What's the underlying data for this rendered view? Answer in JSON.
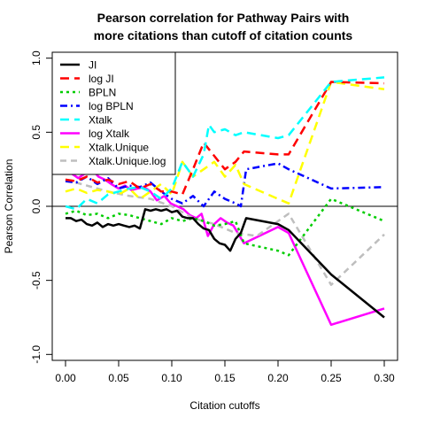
{
  "chart_data": {
    "type": "line",
    "title": "Pearson correlation for Pathway Pairs with\nmore citations than cutoff of citation counts",
    "xlabel": "Citation cutoffs",
    "ylabel": "Pearson Correlation",
    "xlim": [
      -0.0125,
      0.3125
    ],
    "ylim": [
      -1.04,
      1.04
    ],
    "xticks": [
      0.0,
      0.05,
      0.1,
      0.15,
      0.2,
      0.25,
      0.3
    ],
    "xtick_labels": [
      "0.00",
      "0.05",
      "0.10",
      "0.15",
      "0.20",
      "0.25",
      "0.30"
    ],
    "yticks": [
      -1.0,
      -0.5,
      0.0,
      0.5,
      1.0
    ],
    "ytick_labels": [
      "-1.0",
      "-0.5",
      "0.0",
      "0.5",
      "1.0"
    ],
    "hline": 0.0,
    "legend_position": "top-left",
    "series": [
      {
        "name": "log Xtalk",
        "color": "#ff00ff",
        "dash": "solid",
        "x": [
          0.0,
          0.006,
          0.012,
          0.018,
          0.025,
          0.031,
          0.037,
          0.043,
          0.05,
          0.056,
          0.062,
          0.068,
          0.074,
          0.08,
          0.086,
          0.093,
          0.099,
          0.105,
          0.111,
          0.117,
          0.123,
          0.128,
          0.134,
          0.14,
          0.146,
          0.152,
          0.158,
          0.168,
          0.2,
          0.21,
          0.25,
          0.3
        ],
        "y": [
          0.22,
          0.22,
          0.19,
          0.22,
          0.25,
          0.2,
          0.18,
          0.15,
          0.12,
          0.14,
          0.11,
          0.12,
          0.13,
          0.1,
          0.04,
          0.07,
          0.02,
          0.0,
          -0.02,
          -0.06,
          -0.08,
          -0.05,
          -0.2,
          -0.12,
          -0.08,
          -0.11,
          -0.13,
          -0.25,
          -0.14,
          -0.18,
          -0.8,
          -0.69
        ]
      },
      {
        "name": "Xtalk.Unique.log",
        "color": "#bebebe",
        "dash": "7,5",
        "x": [
          0.0,
          0.02,
          0.04,
          0.06,
          0.08,
          0.1,
          0.12,
          0.14,
          0.16,
          0.18,
          0.21,
          0.25,
          0.3
        ],
        "y": [
          0.18,
          0.14,
          0.1,
          0.07,
          0.05,
          0.0,
          -0.08,
          -0.12,
          -0.18,
          -0.2,
          -0.05,
          -0.53,
          -0.19
        ]
      },
      {
        "name": "BPLN",
        "color": "#00cd00",
        "dash": "3,4",
        "x": [
          0.0,
          0.01,
          0.02,
          0.03,
          0.04,
          0.05,
          0.06,
          0.07,
          0.08,
          0.09,
          0.1,
          0.11,
          0.12,
          0.13,
          0.14,
          0.15,
          0.16,
          0.168,
          0.2,
          0.21,
          0.25,
          0.3
        ],
        "y": [
          -0.05,
          -0.03,
          -0.06,
          -0.05,
          -0.08,
          -0.05,
          -0.06,
          -0.08,
          -0.1,
          -0.12,
          -0.08,
          -0.1,
          -0.08,
          -0.1,
          -0.13,
          -0.12,
          -0.1,
          -0.25,
          -0.3,
          -0.33,
          0.05,
          -0.1
        ]
      },
      {
        "name": "log BPLN",
        "color": "#0000ff",
        "dash": "8,4,2,4",
        "x": [
          0.0,
          0.01,
          0.02,
          0.03,
          0.04,
          0.05,
          0.06,
          0.07,
          0.08,
          0.09,
          0.1,
          0.11,
          0.12,
          0.13,
          0.14,
          0.15,
          0.16,
          0.165,
          0.17,
          0.2,
          0.21,
          0.25,
          0.3
        ],
        "y": [
          0.17,
          0.16,
          0.2,
          0.15,
          0.19,
          0.12,
          0.14,
          0.13,
          0.16,
          0.1,
          0.05,
          0.02,
          0.07,
          0.0,
          0.1,
          0.05,
          0.02,
          0.0,
          0.25,
          0.29,
          0.25,
          0.12,
          0.13
        ]
      },
      {
        "name": "Xtalk.Unique",
        "color": "#ffff00",
        "dash": "10,6",
        "x": [
          0.0,
          0.01,
          0.02,
          0.03,
          0.04,
          0.05,
          0.06,
          0.07,
          0.08,
          0.09,
          0.1,
          0.11,
          0.12,
          0.13,
          0.14,
          0.15,
          0.16,
          0.168,
          0.2,
          0.21,
          0.25,
          0.3
        ],
        "y": [
          0.1,
          0.12,
          0.09,
          0.11,
          0.1,
          0.08,
          0.12,
          0.05,
          0.1,
          0.15,
          0.08,
          0.3,
          0.2,
          0.25,
          0.3,
          0.2,
          0.28,
          0.15,
          0.05,
          0.02,
          0.84,
          0.79
        ]
      },
      {
        "name": "log JI",
        "color": "#ff0000",
        "dash": "10,6",
        "x": [
          0.0,
          0.01,
          0.02,
          0.03,
          0.04,
          0.05,
          0.06,
          0.07,
          0.08,
          0.09,
          0.1,
          0.11,
          0.12,
          0.13,
          0.14,
          0.15,
          0.16,
          0.168,
          0.2,
          0.21,
          0.25,
          0.3
        ],
        "y": [
          0.18,
          0.17,
          0.2,
          0.16,
          0.18,
          0.15,
          0.17,
          0.12,
          0.15,
          0.1,
          0.1,
          0.08,
          0.25,
          0.43,
          0.34,
          0.25,
          0.3,
          0.37,
          0.35,
          0.35,
          0.84,
          0.83
        ]
      },
      {
        "name": "Xtalk",
        "color": "#00ffff",
        "dash": "10,6",
        "x": [
          0.0,
          0.01,
          0.02,
          0.03,
          0.04,
          0.05,
          0.06,
          0.07,
          0.08,
          0.09,
          0.1,
          0.11,
          0.12,
          0.13,
          0.135,
          0.14,
          0.15,
          0.16,
          0.168,
          0.2,
          0.21,
          0.25,
          0.3
        ],
        "y": [
          0.0,
          -0.02,
          0.05,
          0.02,
          0.08,
          0.1,
          0.12,
          0.13,
          0.1,
          0.05,
          0.12,
          0.3,
          0.2,
          0.35,
          0.55,
          0.5,
          0.52,
          0.48,
          0.5,
          0.46,
          0.48,
          0.84,
          0.87
        ]
      },
      {
        "name": "JI",
        "color": "#000000",
        "dash": "solid",
        "x": [
          0.0,
          0.005,
          0.01,
          0.015,
          0.02,
          0.025,
          0.03,
          0.035,
          0.04,
          0.045,
          0.05,
          0.055,
          0.06,
          0.065,
          0.07,
          0.075,
          0.08,
          0.085,
          0.09,
          0.095,
          0.1,
          0.105,
          0.11,
          0.115,
          0.12,
          0.125,
          0.13,
          0.135,
          0.14,
          0.145,
          0.15,
          0.155,
          0.16,
          0.165,
          0.17,
          0.2,
          0.21,
          0.25,
          0.3
        ],
        "y": [
          -0.08,
          -0.08,
          -0.1,
          -0.09,
          -0.12,
          -0.13,
          -0.11,
          -0.14,
          -0.12,
          -0.13,
          -0.12,
          -0.13,
          -0.14,
          -0.13,
          -0.15,
          -0.02,
          -0.03,
          -0.02,
          -0.03,
          -0.02,
          -0.04,
          -0.03,
          -0.07,
          -0.08,
          -0.08,
          -0.12,
          -0.15,
          -0.16,
          -0.22,
          -0.25,
          -0.26,
          -0.3,
          -0.22,
          -0.18,
          -0.08,
          -0.12,
          -0.16,
          -0.46,
          -0.75
        ]
      }
    ],
    "legend": [
      {
        "label": "JI",
        "color": "#000000",
        "dash": "solid"
      },
      {
        "label": "log JI",
        "color": "#ff0000",
        "dash": "10,6"
      },
      {
        "label": "BPLN",
        "color": "#00cd00",
        "dash": "3,4"
      },
      {
        "label": "log BPLN",
        "color": "#0000ff",
        "dash": "8,4,2,4"
      },
      {
        "label": "Xtalk",
        "color": "#00ffff",
        "dash": "10,6"
      },
      {
        "label": "log Xtalk",
        "color": "#ff00ff",
        "dash": "solid"
      },
      {
        "label": "Xtalk.Unique",
        "color": "#ffff00",
        "dash": "10,6"
      },
      {
        "label": "Xtalk.Unique.log",
        "color": "#bebebe",
        "dash": "7,5"
      }
    ]
  }
}
